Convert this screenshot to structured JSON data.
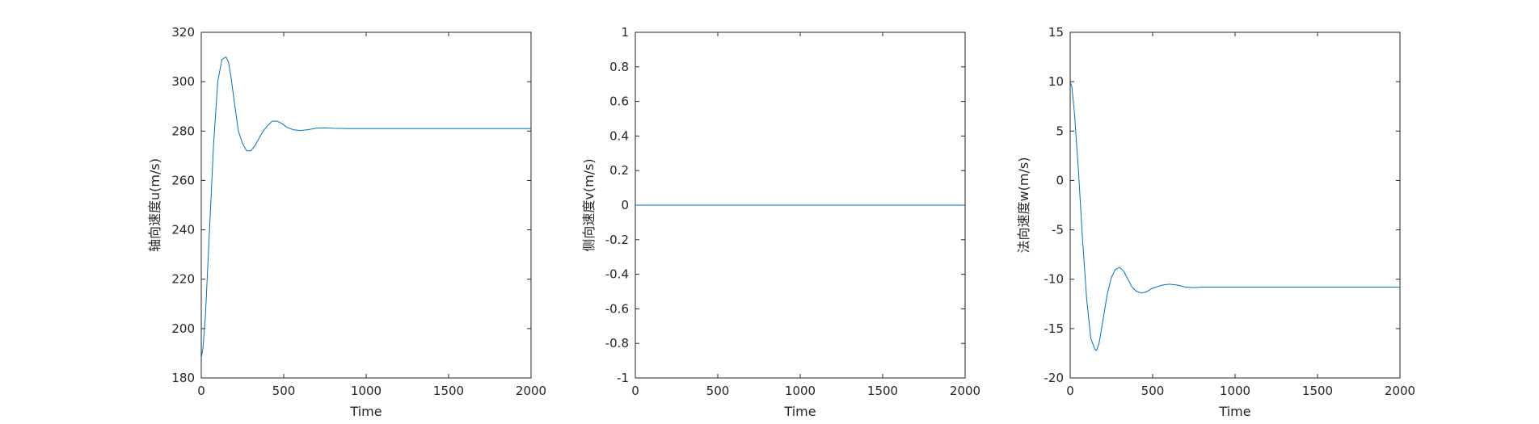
{
  "colors": {
    "series": "#0072BD",
    "axis": "#262626",
    "background": "#ffffff"
  },
  "chart_data": [
    {
      "type": "line",
      "xlabel": "Time",
      "ylabel": "轴向速度u(m/s)",
      "xlim": [
        0,
        2000
      ],
      "ylim": [
        180,
        320
      ],
      "xticks": [
        0,
        500,
        1000,
        1500,
        2000
      ],
      "yticks": [
        180,
        200,
        220,
        240,
        260,
        280,
        300,
        320
      ],
      "grid": false,
      "series": [
        {
          "x": [
            0,
            10,
            25,
            50,
            75,
            100,
            125,
            150,
            165,
            180,
            200,
            225,
            250,
            275,
            300,
            325,
            350,
            375,
            400,
            430,
            460,
            490,
            520,
            560,
            600,
            650,
            700,
            750,
            800,
            900,
            1000,
            1200,
            1400,
            1600,
            1800,
            2000
          ],
          "y": [
            188,
            192,
            205,
            240,
            275,
            300,
            309,
            310,
            308,
            302,
            292,
            280,
            275,
            272,
            272,
            274,
            277,
            280,
            282,
            284,
            284,
            283,
            281.5,
            280.5,
            280.2,
            280.6,
            281.2,
            281.3,
            281.1,
            281,
            281,
            281,
            281,
            281,
            281,
            281
          ]
        }
      ]
    },
    {
      "type": "line",
      "xlabel": "Time",
      "ylabel": "侧向速度v(m/s)",
      "xlim": [
        0,
        2000
      ],
      "ylim": [
        -1,
        1
      ],
      "xticks": [
        0,
        500,
        1000,
        1500,
        2000
      ],
      "yticks": [
        -1,
        -0.8,
        -0.6,
        -0.4,
        -0.2,
        0,
        0.2,
        0.4,
        0.6,
        0.8,
        1
      ],
      "grid": false,
      "series": [
        {
          "x": [
            0,
            2000
          ],
          "y": [
            0,
            0
          ]
        }
      ]
    },
    {
      "type": "line",
      "xlabel": "Time",
      "ylabel": "法向速度w(m/s)",
      "xlim": [
        0,
        2000
      ],
      "ylim": [
        -20,
        15
      ],
      "xticks": [
        0,
        500,
        1000,
        1500,
        2000
      ],
      "yticks": [
        -20,
        -15,
        -10,
        -5,
        0,
        5,
        10,
        15
      ],
      "grid": false,
      "series": [
        {
          "x": [
            0,
            10,
            25,
            50,
            75,
            100,
            125,
            150,
            160,
            175,
            200,
            225,
            250,
            275,
            300,
            325,
            350,
            375,
            400,
            430,
            460,
            490,
            520,
            560,
            600,
            650,
            700,
            750,
            800,
            900,
            1000,
            1200,
            1400,
            1600,
            1800,
            2000
          ],
          "y": [
            10,
            9.5,
            7,
            1,
            -6,
            -12,
            -16,
            -17.1,
            -17.2,
            -16.5,
            -14,
            -11.5,
            -9.8,
            -9,
            -8.8,
            -9.2,
            -10,
            -10.8,
            -11.2,
            -11.4,
            -11.3,
            -11,
            -10.8,
            -10.6,
            -10.5,
            -10.6,
            -10.8,
            -10.85,
            -10.8,
            -10.8,
            -10.8,
            -10.8,
            -10.8,
            -10.8,
            -10.8,
            -10.8
          ]
        }
      ]
    }
  ]
}
